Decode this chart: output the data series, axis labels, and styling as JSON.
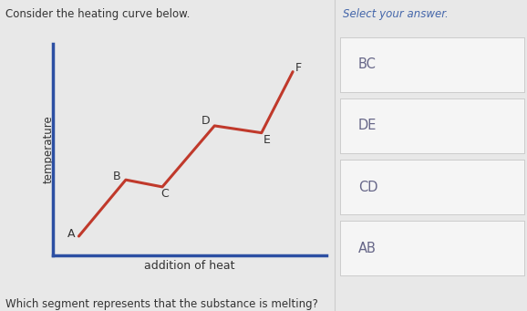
{
  "title_right": "Select your answer.",
  "subtitle": "Consider the heating curve below.",
  "xlabel": "addition of heat",
  "ylabel": "temperature",
  "question": "Which segment represents that the substance is melting?",
  "curve_points_x": [
    1.0,
    2.8,
    4.2,
    6.2,
    8.0,
    9.2
  ],
  "curve_points_y": [
    0.8,
    3.2,
    2.9,
    5.5,
    5.2,
    7.8
  ],
  "point_labels": [
    "A",
    "B",
    "C",
    "D",
    "E",
    "F"
  ],
  "label_offsets_x": [
    -0.3,
    -0.35,
    0.1,
    -0.35,
    0.2,
    0.2
  ],
  "label_offsets_y": [
    0.1,
    0.15,
    -0.3,
    0.2,
    -0.3,
    0.15
  ],
  "curve_color": "#c0392b",
  "axis_color": "#2c4fa3",
  "panel_bg": "#e8e8e8",
  "chart_bg": "#e8e8e8",
  "answer_options": [
    "BC",
    "DE",
    "CD",
    "AB"
  ],
  "answer_box_color": "#f5f5f5",
  "answer_border_color": "#cccccc",
  "answer_text_color": "#666688",
  "select_text_color": "#4466aa",
  "divider_color": "#cccccc"
}
